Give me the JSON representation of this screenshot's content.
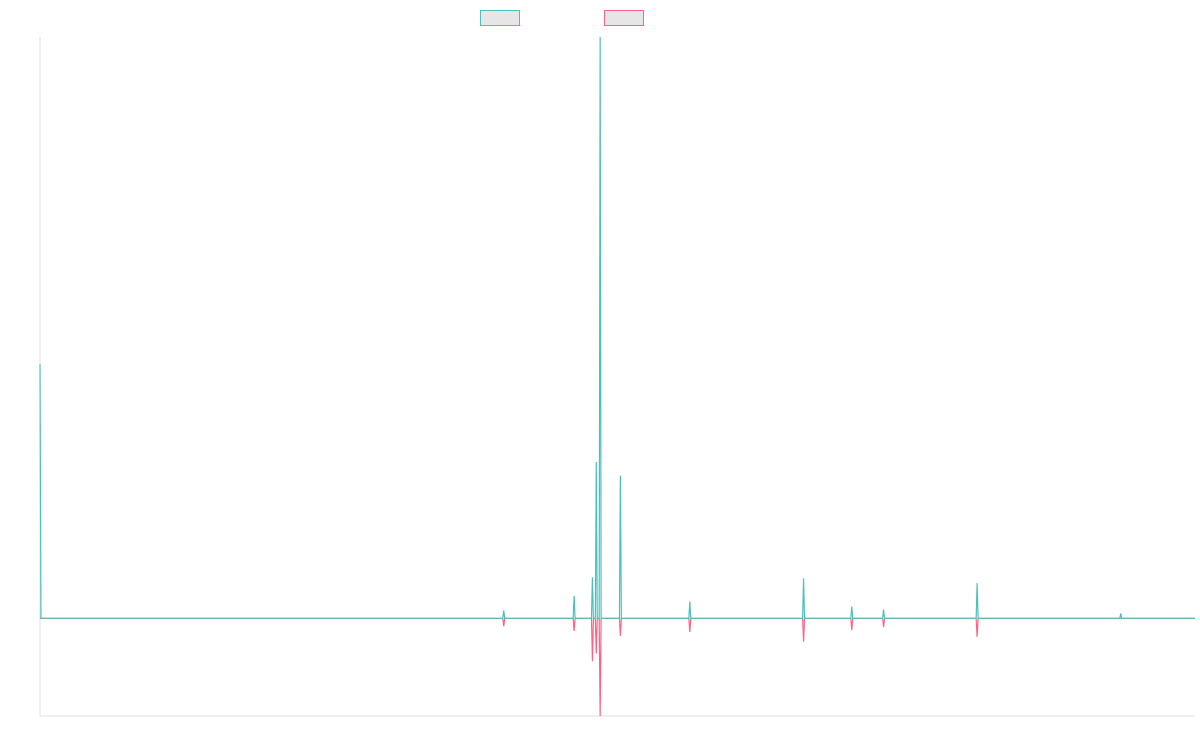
{
  "chart_data": {
    "type": "line",
    "title": "",
    "xlabel": "",
    "ylabel": "",
    "grid": false,
    "legend": "top-center",
    "colors": {
      "series_1": "#4bc0c0",
      "series_2": "#ff6384",
      "axis": "#e0e0e0"
    },
    "x_count": 1199,
    "ylim": [
      -100,
      595
    ],
    "series": [
      {
        "color": "#4bc0c0",
        "spikes": [
          [
            0,
            260
          ],
          [
            481,
            8
          ],
          [
            554,
            23
          ],
          [
            573,
            42
          ],
          [
            577,
            160
          ],
          [
            581,
            595
          ],
          [
            602,
            146
          ],
          [
            674,
            17
          ],
          [
            792,
            41
          ],
          [
            842,
            12
          ],
          [
            875,
            9
          ],
          [
            972,
            36
          ],
          [
            1121,
            5
          ]
        ]
      },
      {
        "color": "#ff6384",
        "spikes": [
          [
            481,
            -8
          ],
          [
            554,
            -13
          ],
          [
            573,
            -44
          ],
          [
            577,
            -36
          ],
          [
            581,
            -100
          ],
          [
            602,
            -18
          ],
          [
            674,
            -14
          ],
          [
            792,
            -24
          ],
          [
            842,
            -12
          ],
          [
            875,
            -9
          ],
          [
            972,
            -19
          ]
        ]
      }
    ]
  }
}
